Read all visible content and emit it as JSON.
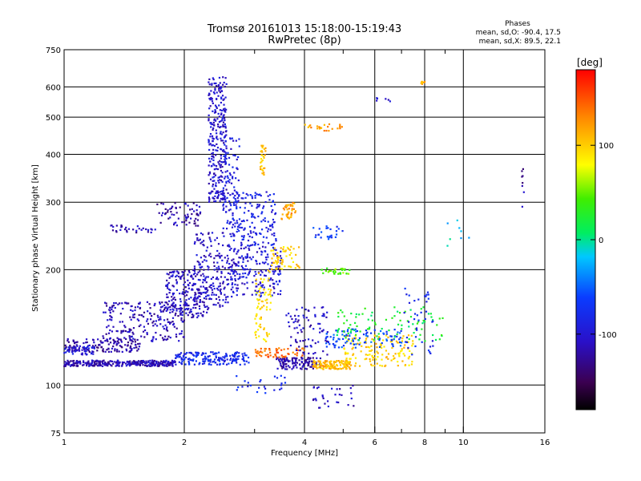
{
  "header": {
    "title": "Tromsø 20161013 15:18:00-15:19:43",
    "subtitle": "RwPretec (8p)"
  },
  "phases_box": {
    "title": "Phases",
    "line_o": "mean, sd,O: -90.4, 17.5",
    "line_x": "mean, sd,X:  89.5, 22.1"
  },
  "colorbar": {
    "label": "[deg]",
    "ticks": [
      {
        "value": 100,
        "label": "100"
      },
      {
        "value": 0,
        "label": "0"
      },
      {
        "value": -100,
        "label": "-100"
      }
    ]
  },
  "chart_data": {
    "type": "scatter",
    "title": "Tromsø 20161013 15:18:00-15:19:43",
    "subtitle": "RwPretec (8p)",
    "xlabel": "Frequency [MHz]",
    "ylabel": "Stationary phase Virtual Height [km]",
    "xscale": "log",
    "yscale": "log",
    "xlim": [
      1,
      16
    ],
    "ylim": [
      75,
      750
    ],
    "xticks": [
      1,
      2,
      4,
      6,
      8,
      10,
      16
    ],
    "xtick_labels": [
      "1",
      "2",
      "4",
      "6",
      "8",
      "10",
      "16"
    ],
    "xminor_ticks": [
      3,
      5,
      7,
      9
    ],
    "yticks": [
      75,
      100,
      200,
      300,
      400,
      500,
      600,
      750
    ],
    "ytick_labels": [
      "75",
      "100",
      "200",
      "300",
      "400",
      "500",
      "600",
      "750"
    ],
    "grid": true,
    "color_scale": {
      "name": "Phase",
      "unit": "deg",
      "min": -180,
      "max": 180
    },
    "clusters": [
      {
        "x": [
          1.0,
          1.9
        ],
        "y": [
          112,
          116
        ],
        "phase": -115,
        "n": 320
      },
      {
        "x": [
          1.9,
          2.9
        ],
        "y": [
          113,
          122
        ],
        "phase": -80,
        "n": 180
      },
      {
        "x": [
          1.0,
          1.55
        ],
        "y": [
          122,
          132
        ],
        "phase": -120,
        "n": 140
      },
      {
        "x": [
          1.25,
          2.0
        ],
        "y": [
          130,
          165
        ],
        "phase": -115,
        "n": 220
      },
      {
        "x": [
          1.0,
          1.2
        ],
        "y": [
          120,
          126
        ],
        "phase": -100,
        "n": 50
      },
      {
        "x": [
          1.8,
          2.3
        ],
        "y": [
          150,
          200
        ],
        "phase": -110,
        "n": 200
      },
      {
        "x": [
          2.1,
          2.6
        ],
        "y": [
          160,
          250
        ],
        "phase": -108,
        "n": 180
      },
      {
        "x": [
          2.3,
          2.55
        ],
        "y": [
          300,
          640
        ],
        "phase": -105,
        "n": 280
      },
      {
        "x": [
          2.5,
          2.75
        ],
        "y": [
          250,
          450
        ],
        "phase": -95,
        "n": 90
      },
      {
        "x": [
          2.6,
          3.5
        ],
        "y": [
          170,
          230
        ],
        "phase": -100,
        "n": 200
      },
      {
        "x": [
          2.6,
          3.4
        ],
        "y": [
          230,
          320
        ],
        "phase": -90,
        "n": 160
      },
      {
        "x": [
          1.7,
          2.2
        ],
        "y": [
          260,
          300
        ],
        "phase": -118,
        "n": 70
      },
      {
        "x": [
          1.3,
          1.7
        ],
        "y": [
          250,
          262
        ],
        "phase": -115,
        "n": 30
      },
      {
        "x": [
          3.0,
          3.3
        ],
        "y": [
          130,
          200
        ],
        "phase": 95,
        "n": 70
      },
      {
        "x": [
          3.1,
          3.2
        ],
        "y": [
          350,
          430
        ],
        "phase": 110,
        "n": 30
      },
      {
        "x": [
          3.3,
          3.9
        ],
        "y": [
          200,
          230
        ],
        "phase": 100,
        "n": 60
      },
      {
        "x": [
          3.5,
          3.8
        ],
        "y": [
          270,
          300
        ],
        "phase": 120,
        "n": 40
      },
      {
        "x": [
          3.0,
          4.0
        ],
        "y": [
          118,
          125
        ],
        "phase": 140,
        "n": 60
      },
      {
        "x": [
          3.4,
          4.4
        ],
        "y": [
          110,
          118
        ],
        "phase": -120,
        "n": 120
      },
      {
        "x": [
          3.6,
          4.6
        ],
        "y": [
          120,
          160
        ],
        "phase": -110,
        "n": 80
      },
      {
        "x": [
          4.2,
          5.2
        ],
        "y": [
          110,
          116
        ],
        "phase": 110,
        "n": 120
      },
      {
        "x": [
          5.0,
          7.5
        ],
        "y": [
          112,
          135
        ],
        "phase": 100,
        "n": 150
      },
      {
        "x": [
          4.5,
          7.0
        ],
        "y": [
          125,
          140
        ],
        "phase": -60,
        "n": 100
      },
      {
        "x": [
          4.8,
          9.0
        ],
        "y": [
          130,
          160
        ],
        "phase": 20,
        "n": 90
      },
      {
        "x": [
          4.4,
          5.2
        ],
        "y": [
          195,
          202
        ],
        "phase": 50,
        "n": 30
      },
      {
        "x": [
          4.2,
          5.0
        ],
        "y": [
          240,
          260
        ],
        "phase": -70,
        "n": 25
      },
      {
        "x": [
          4.0,
          5.0
        ],
        "y": [
          460,
          480
        ],
        "phase": 120,
        "n": 25
      },
      {
        "x": [
          4.2,
          5.4
        ],
        "y": [
          87,
          100
        ],
        "phase": -110,
        "n": 30
      },
      {
        "x": [
          2.7,
          3.6
        ],
        "y": [
          95,
          106
        ],
        "phase": -80,
        "n": 25
      },
      {
        "x": [
          7.8,
          8.0
        ],
        "y": [
          610,
          620
        ],
        "phase": 110,
        "n": 8
      },
      {
        "x": [
          6.0,
          6.6
        ],
        "y": [
          550,
          565
        ],
        "phase": -100,
        "n": 6
      },
      {
        "x": [
          9.0,
          10.5
        ],
        "y": [
          230,
          270
        ],
        "phase": -20,
        "n": 8
      },
      {
        "x": [
          14.0,
          14.2
        ],
        "y": [
          290,
          390
        ],
        "phase": -120,
        "n": 8
      },
      {
        "x": [
          7.0,
          8.5
        ],
        "y": [
          120,
          185
        ],
        "phase": -80,
        "n": 40
      }
    ]
  }
}
